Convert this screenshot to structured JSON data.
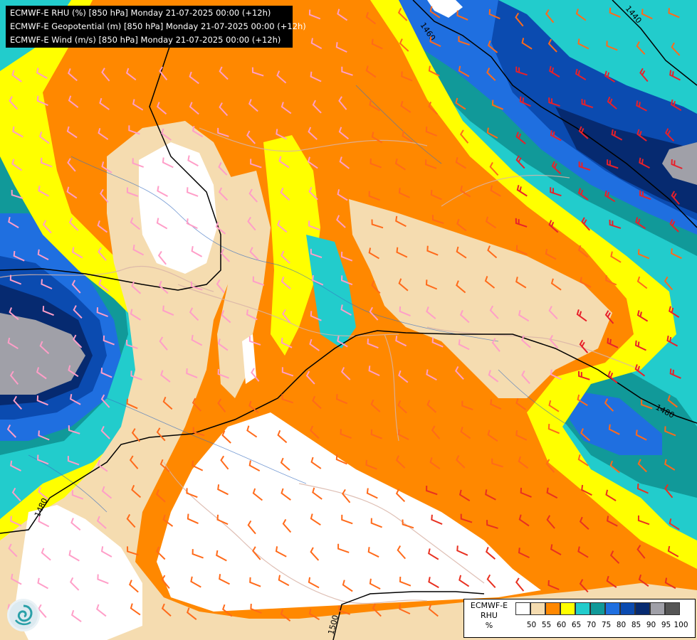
{
  "title_lines": [
    "ECMWF-E RHU (%) [850 hPa] Monday 21-07-2025 00:00 (+12h)",
    "ECMWF-E Geopotential (m) [850 hPa] Monday 21-07-2025 00:00 (+12h)",
    "ECMWF-E Wind (m/s) [850 hPa] Monday 21-07-2025 00:00 (+12h)"
  ],
  "legend": {
    "title_lines": [
      "ECMWF-E",
      "RHU",
      "%"
    ],
    "classes": [
      {
        "color": "#ffffff"
      },
      {
        "color": "#f5dcb0"
      },
      {
        "color": "#ff8800"
      },
      {
        "color": "#ffff00"
      },
      {
        "color": "#22cccc"
      },
      {
        "color": "#119999"
      },
      {
        "color": "#1f6fe0"
      },
      {
        "color": "#0b4bb0"
      },
      {
        "color": "#062a70"
      },
      {
        "color": "#a0a0a8"
      },
      {
        "color": "#555555"
      }
    ],
    "tick_labels": [
      "50",
      "55",
      "60",
      "65",
      "70",
      "75",
      "80",
      "85",
      "90",
      "95",
      "100"
    ]
  },
  "contour_labels": [
    "1460",
    "1440",
    "1480",
    "1480",
    "1500"
  ]
}
